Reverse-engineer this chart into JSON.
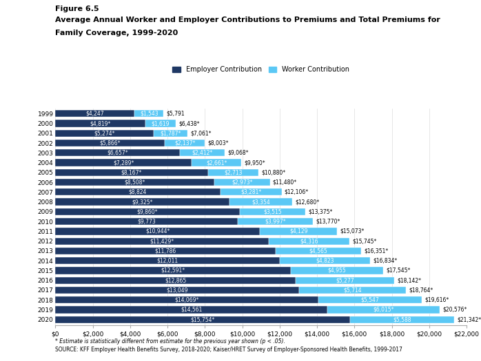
{
  "years": [
    "1999",
    "2000",
    "2001",
    "2002",
    "2003",
    "2004",
    "2005",
    "2006",
    "2007",
    "2008",
    "2009",
    "2010",
    "2011",
    "2012",
    "2013",
    "2014",
    "2015",
    "2016",
    "2017",
    "2018",
    "2019",
    "2020"
  ],
  "employer": [
    4247,
    4819,
    5274,
    5866,
    6657,
    7289,
    8167,
    8508,
    8824,
    9325,
    9860,
    9773,
    10944,
    11429,
    11786,
    12011,
    12591,
    12865,
    13049,
    14069,
    14561,
    15754
  ],
  "worker": [
    1543,
    1619,
    1787,
    2137,
    2412,
    2661,
    2713,
    2973,
    3281,
    3354,
    3515,
    3997,
    4129,
    4316,
    4565,
    4823,
    4955,
    5277,
    5714,
    5547,
    6015,
    5588
  ],
  "total": [
    5791,
    6438,
    7061,
    8003,
    9068,
    9950,
    10880,
    11480,
    12106,
    12680,
    13375,
    13770,
    15073,
    15745,
    16351,
    16834,
    17545,
    18142,
    18764,
    19616,
    20576,
    21342
  ],
  "employer_star": [
    false,
    true,
    true,
    true,
    true,
    true,
    true,
    true,
    false,
    true,
    true,
    false,
    true,
    true,
    false,
    false,
    true,
    false,
    false,
    true,
    false,
    true
  ],
  "worker_star": [
    false,
    false,
    true,
    true,
    true,
    true,
    false,
    true,
    true,
    false,
    false,
    true,
    false,
    false,
    false,
    false,
    false,
    false,
    false,
    false,
    true,
    false
  ],
  "total_star": [
    false,
    true,
    true,
    true,
    true,
    true,
    true,
    true,
    true,
    true,
    true,
    true,
    true,
    true,
    true,
    true,
    true,
    true,
    true,
    true,
    true,
    true
  ],
  "employer_color": "#1f3864",
  "worker_color": "#5bc8f5",
  "title_line1": "Figure 6.5",
  "title_line2": "Average Annual Worker and Employer Contributions to Premiums and Total Premiums for",
  "title_line3": "Family Coverage, 1999-2020",
  "xlim": [
    0,
    22000
  ],
  "xticks": [
    0,
    2000,
    4000,
    6000,
    8000,
    10000,
    12000,
    14000,
    16000,
    18000,
    20000,
    22000
  ],
  "xtick_labels": [
    "$0",
    "$2,000",
    "$4,000",
    "$6,000",
    "$8,000",
    "$10,000",
    "$12,000",
    "$14,000",
    "$16,000",
    "$18,000",
    "$20,000",
    "$22,000"
  ],
  "footer1": "* Estimate is statistically different from estimate for the previous year shown (p < .05).",
  "footer2": "SOURCE: KFF Employer Health Benefits Survey, 2018-2020; Kaiser/HRET Survey of Employer-Sponsored Health Benefits, 1999-2017",
  "legend_employer": "Employer Contribution",
  "legend_worker": "Worker Contribution",
  "bar_height": 0.72,
  "label_fontsize": 5.5,
  "ytick_fontsize": 6.5,
  "xtick_fontsize": 6.5
}
